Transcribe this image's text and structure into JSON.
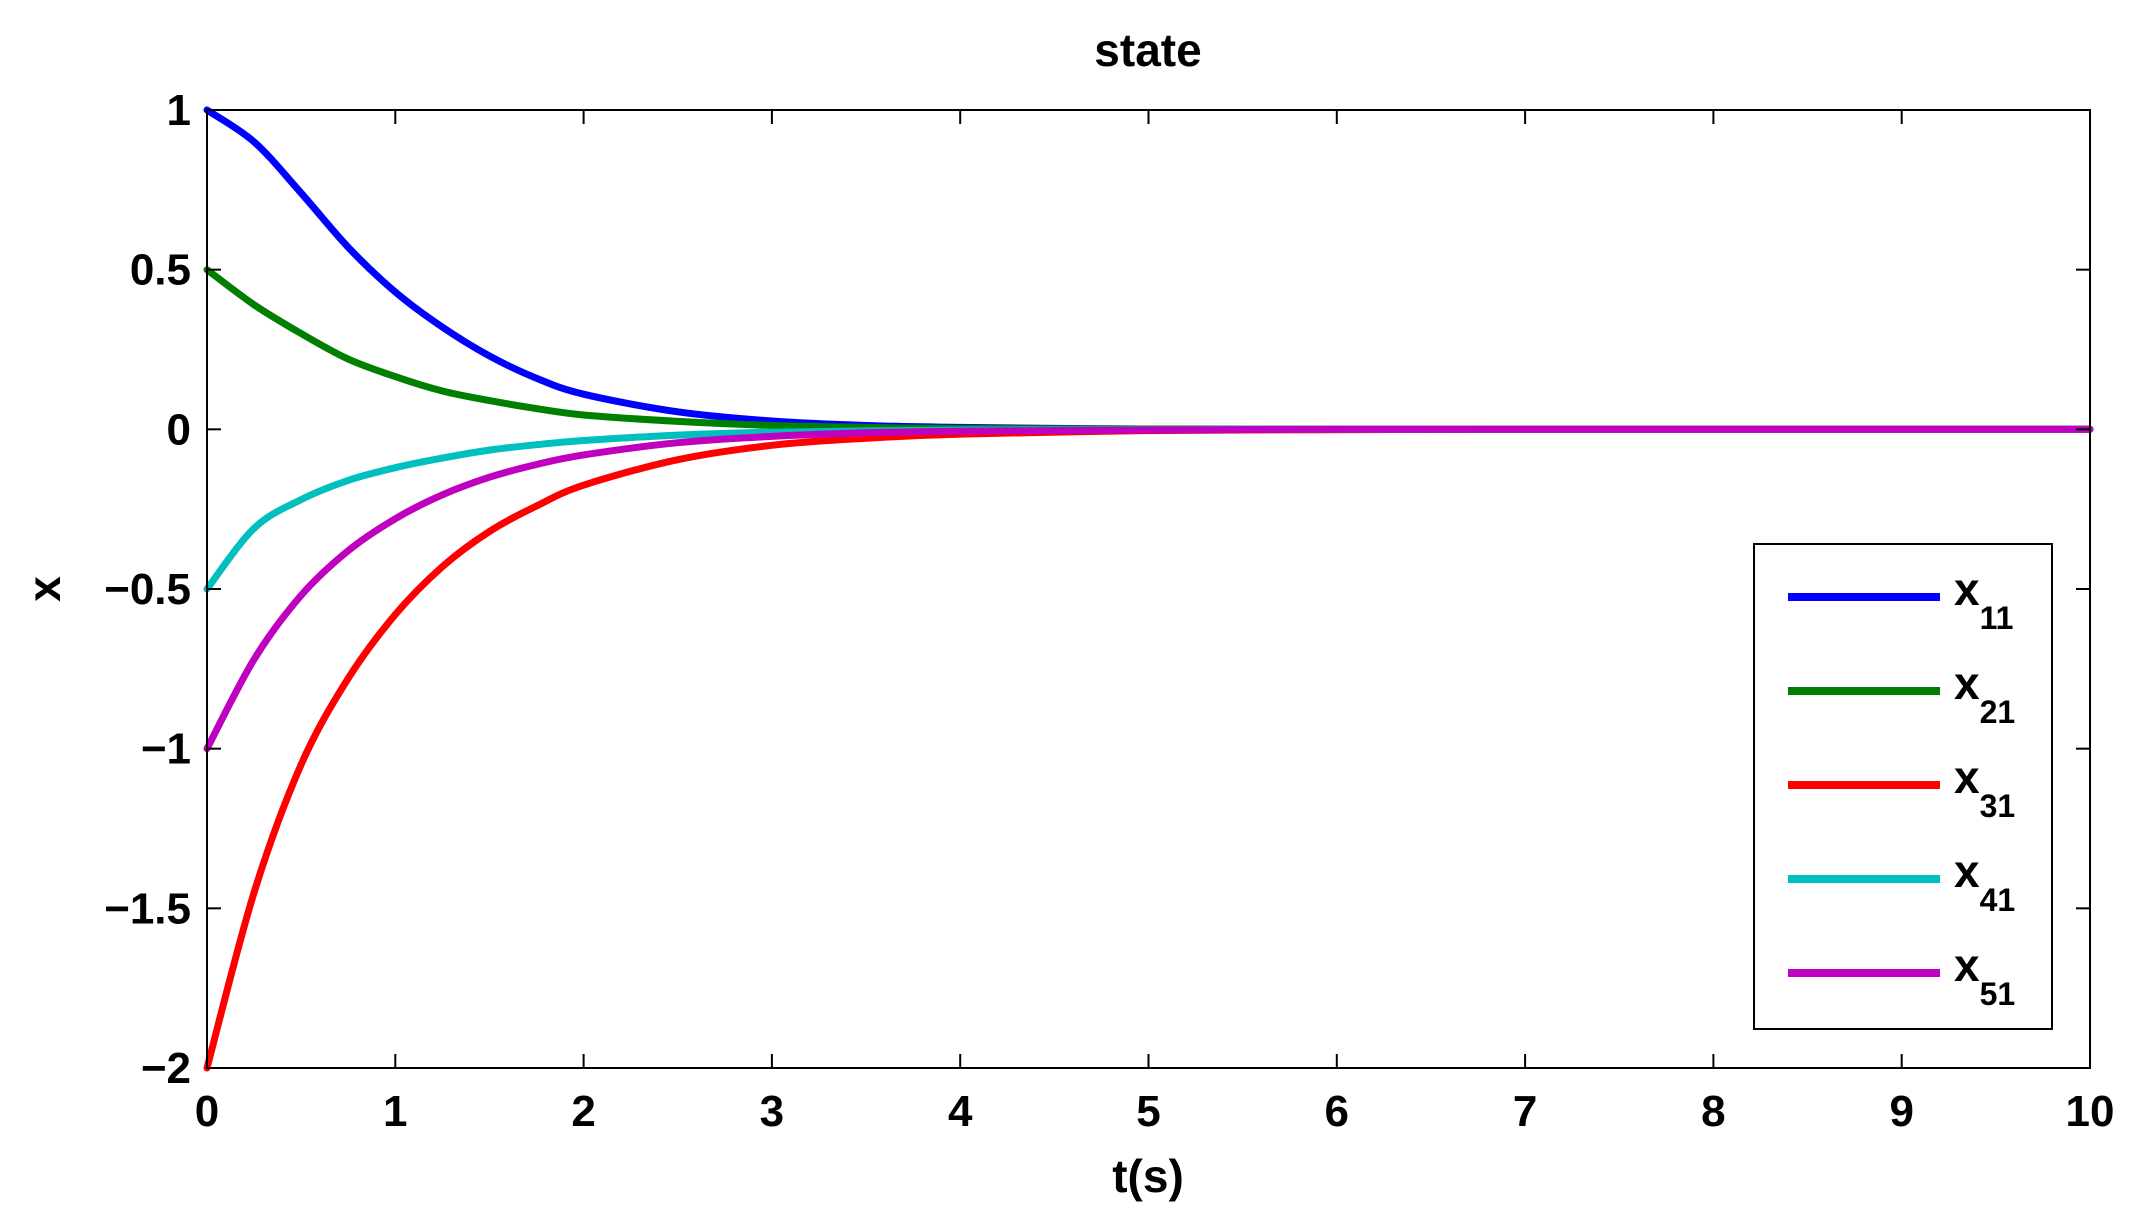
{
  "chart_data": {
    "type": "line",
    "title": "state",
    "xlabel": "t(s)",
    "ylabel": "x",
    "xlim": [
      0,
      10
    ],
    "ylim": [
      -2,
      1
    ],
    "xticks": [
      0,
      1,
      2,
      3,
      4,
      5,
      6,
      7,
      8,
      9,
      10
    ],
    "xtick_labels": [
      "0",
      "1",
      "2",
      "3",
      "4",
      "5",
      "6",
      "7",
      "8",
      "9",
      "10"
    ],
    "yticks": [
      1,
      0.5,
      0,
      -0.5,
      -1,
      -1.5,
      -2
    ],
    "ytick_labels": [
      "1",
      "0.5",
      "0",
      "−0.5",
      "−1",
      "−1.5",
      "−2"
    ],
    "grid": false,
    "legend_position": "bottom-right",
    "x": [
      0,
      0.25,
      0.5,
      0.75,
      1,
      1.25,
      1.5,
      1.75,
      2,
      2.5,
      3,
      3.5,
      4,
      5,
      6,
      7,
      8,
      9,
      10
    ],
    "series": [
      {
        "name": "x",
        "sub": "11",
        "color": "#0000ff",
        "values": [
          1,
          0.9,
          0.74,
          0.57,
          0.43,
          0.32,
          0.23,
          0.16,
          0.11,
          0.055,
          0.026,
          0.012,
          0.006,
          0.001,
          0,
          0,
          0,
          0,
          0
        ]
      },
      {
        "name": "x",
        "sub": "21",
        "color": "#007f00",
        "values": [
          0.5,
          0.39,
          0.3,
          0.22,
          0.165,
          0.12,
          0.09,
          0.065,
          0.045,
          0.025,
          0.012,
          0.006,
          0.003,
          0.001,
          0,
          0,
          0,
          0,
          0
        ]
      },
      {
        "name": "x",
        "sub": "31",
        "color": "#ff0000",
        "values": [
          -2,
          -1.45,
          -1.05,
          -0.78,
          -0.58,
          -0.43,
          -0.32,
          -0.24,
          -0.175,
          -0.095,
          -0.05,
          -0.028,
          -0.015,
          -0.004,
          -0.001,
          0,
          0,
          0,
          0
        ]
      },
      {
        "name": "x",
        "sub": "41",
        "color": "#00bfbf",
        "values": [
          -0.5,
          -0.31,
          -0.22,
          -0.16,
          -0.12,
          -0.09,
          -0.065,
          -0.048,
          -0.035,
          -0.018,
          -0.009,
          -0.005,
          -0.002,
          -0.001,
          0,
          0,
          0,
          0,
          0
        ]
      },
      {
        "name": "x",
        "sub": "51",
        "color": "#bf00bf",
        "values": [
          -1,
          -0.72,
          -0.52,
          -0.38,
          -0.28,
          -0.205,
          -0.15,
          -0.11,
          -0.08,
          -0.042,
          -0.022,
          -0.011,
          -0.006,
          -0.002,
          0,
          0,
          0,
          0,
          0
        ]
      }
    ]
  }
}
